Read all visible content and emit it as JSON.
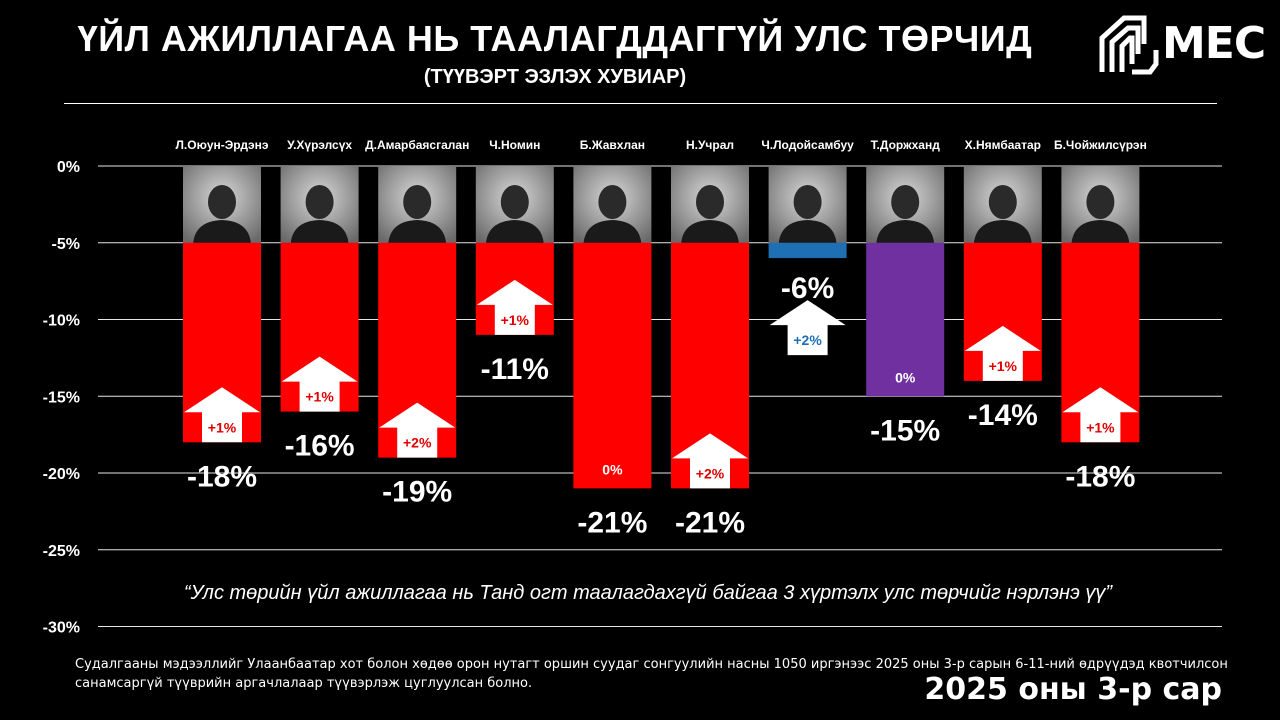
{
  "header": {
    "title": "ҮЙЛ АЖИЛЛАГАА НЬ ТААЛАГДДАГГҮЙ УЛС ТӨРЧИД",
    "subtitle": "(ТҮҮВЭРТ ЭЗЛЭХ ХУВИАР)",
    "logo_text": "МЕС"
  },
  "chart_data": {
    "type": "bar",
    "title": "ҮЙЛ АЖИЛЛАГАА НЬ ТААЛАГДДАГГҮЙ УЛС ТӨРЧИД",
    "subtitle": "(ТҮҮВЭРТ ЭЗЛЭХ ХУВИАР)",
    "ylim": [
      -30,
      0
    ],
    "yticks": [
      0,
      -5,
      -10,
      -15,
      -20,
      -25,
      -30
    ],
    "ytick_labels": [
      "0%",
      "-5%",
      "-10%",
      "-15%",
      "-20%",
      "-25%",
      "-30%"
    ],
    "grid": true,
    "categories": [
      "Л.Оюун-Эрдэнэ",
      "У.Хүрэлсүх",
      "Д.Амарбаясгалан",
      "Ч.Номин",
      "Б.Жавхлан",
      "Н.Учрал",
      "Ч.Лодойсамбуу",
      "Т.Доржханд",
      "Х.Нямбаатар",
      "Б.Чойжилсүрэн"
    ],
    "values": [
      -18,
      -16,
      -19,
      -11,
      -21,
      -21,
      -6,
      -15,
      -14,
      -18
    ],
    "value_labels": [
      "-18%",
      "-16%",
      "-19%",
      "-11%",
      "-21%",
      "-21%",
      "-6%",
      "-15%",
      "-14%",
      "-18%"
    ],
    "changes": [
      "+1%",
      "+1%",
      "+2%",
      "+1%",
      "0%",
      "+2%",
      "+2%",
      "0%",
      "+1%",
      "+1%"
    ],
    "bar_colors": [
      "#ff0000",
      "#ff0000",
      "#ff0000",
      "#ff0000",
      "#ff0000",
      "#ff0000",
      "#1f6fb5",
      "#7030a0",
      "#ff0000",
      "#ff0000"
    ],
    "change_text_colors": [
      "#e00000",
      "#e00000",
      "#e00000",
      "#e00000",
      "#ffffff",
      "#e00000",
      "#1f6fb5",
      "#ffffff",
      "#e00000",
      "#e00000"
    ]
  },
  "quote": "“Улс төрийн үйл ажиллагаа нь Танд огт таалагдахгүй байгаа 3 хүртэлх улс төрчийг нэрлэнэ үү”",
  "footnote": "Судалгааны мэдээллийг Улаанбаатар хот болон хөдөө орон нутагт оршин суудаг сонгуулийн насны 1050 иргэнээс 2025 оны 3-р сарын 6-11-ний өдрүүдэд квотчилсон санамсаргүй түүврийн аргачлалаар түүвэрлэж цуглуулсан болно.",
  "date": "2025 оны 3-р сар"
}
